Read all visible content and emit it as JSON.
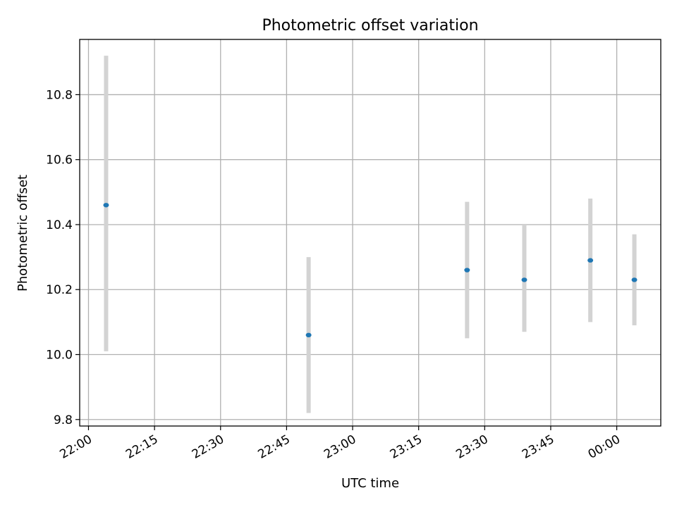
{
  "chart_data": {
    "type": "scatter",
    "title": "Photometric offset variation",
    "xlabel": "UTC time",
    "ylabel": "Photometric offset",
    "x_ticks": [
      "22:00",
      "22:15",
      "22:30",
      "22:45",
      "23:00",
      "23:15",
      "23:30",
      "23:45",
      "00:00"
    ],
    "xlim": [
      "21:58",
      "00:10"
    ],
    "ylim": [
      9.78,
      10.97
    ],
    "y_ticks": [
      "9.8",
      "10.0",
      "10.2",
      "10.4",
      "10.6",
      "10.8"
    ],
    "grid": true,
    "points": [
      {
        "x": "22:04",
        "y": 10.46,
        "yerr_low": 10.01,
        "yerr_high": 10.92
      },
      {
        "x": "22:50",
        "y": 10.06,
        "yerr_low": 9.82,
        "yerr_high": 10.3
      },
      {
        "x": "23:26",
        "y": 10.26,
        "yerr_low": 10.05,
        "yerr_high": 10.47
      },
      {
        "x": "23:39",
        "y": 10.23,
        "yerr_low": 10.07,
        "yerr_high": 10.4
      },
      {
        "x": "23:54",
        "y": 10.29,
        "yerr_low": 10.1,
        "yerr_high": 10.48
      },
      {
        "x": "00:04",
        "y": 10.23,
        "yerr_low": 10.09,
        "yerr_high": 10.37
      }
    ],
    "colors": {
      "point": "#1f77b4",
      "errorbar": "#d3d3d3",
      "grid": "#b0b0b0"
    }
  }
}
